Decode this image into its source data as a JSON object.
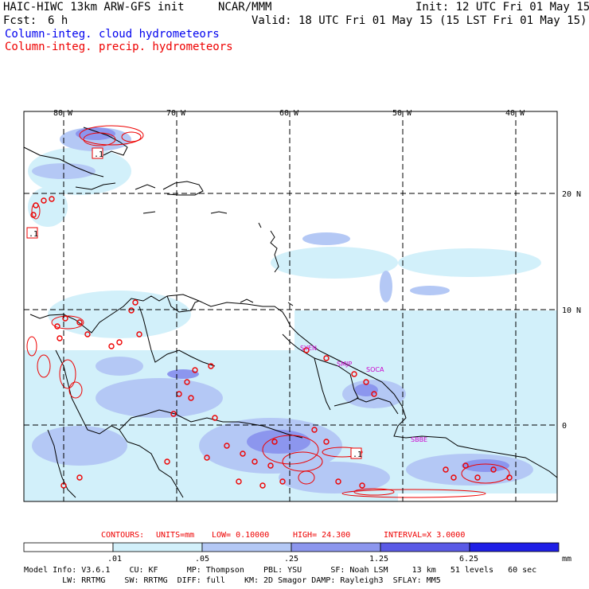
{
  "header": {
    "model_title": "HAIC-HIWC 13km ARW-GFS init",
    "org": "NCAR/MMM",
    "init": "Init: 12 UTC Fri 01 May 15",
    "fcst_label": "Fcst:",
    "fcst_value": "6 h",
    "valid": "Valid: 18 UTC Fri 01 May 15 (15 LST Fri 01 May 15)",
    "field_cloud": "Column-integ. cloud hydrometeors",
    "field_precip": "Column-integ. precip. hydrometeors"
  },
  "map": {
    "lon_labels": [
      "80 W",
      "70 W",
      "60 W",
      "50 W",
      "40 W"
    ],
    "lat_labels": [
      "20 N",
      "10 N",
      "0"
    ],
    "station_labels": [
      "SYEN",
      "SMJP",
      "SOCA",
      "SBBE"
    ],
    "max_markers": [
      ".1",
      ".1",
      ".1"
    ]
  },
  "contours": {
    "label": "CONTOURS:",
    "units": "UNITS=mm",
    "low": "LOW= 0.10000",
    "high": "HIGH= 24.300",
    "interval": "INTERVAL=X 3.0000"
  },
  "colorbar": {
    "ticks": [
      ".01",
      ".05",
      ".25",
      "1.25",
      "6.25"
    ],
    "unit": "mm",
    "colors": [
      "#ffffff",
      "#d2f0fa",
      "#b4c8f5",
      "#8c96ee",
      "#5a5ae6",
      "#1e1ee6"
    ]
  },
  "model_info": {
    "line1": "Model Info: V3.6.1    CU: KF      MP: Thompson    PBL: YSU      SF: Noah LSM     13 km   51 levels   60 sec",
    "line2": "        LW: RRTMG    SW: RRTMG  DIFF: full    KM: 2D Smagor DAMP: Rayleigh3  SFLAY: MM5"
  }
}
